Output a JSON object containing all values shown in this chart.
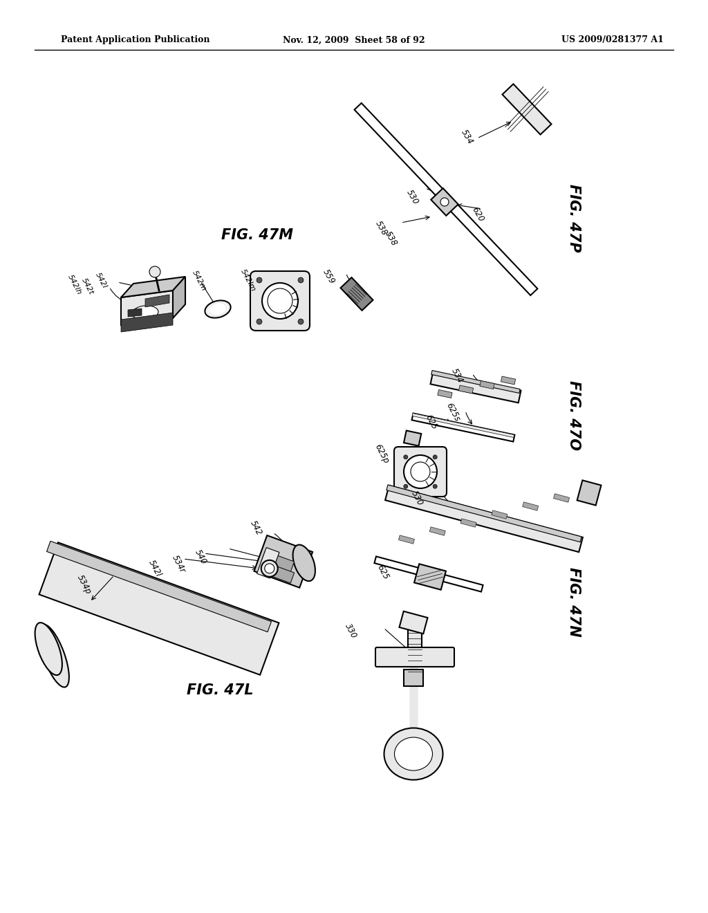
{
  "background_color": "#ffffff",
  "header_left": "Patent Application Publication",
  "header_center": "Nov. 12, 2009  Sheet 58 of 92",
  "header_right": "US 2009/0281377 A1",
  "fig_47M_label": "FIG. 47M",
  "fig_47L_label": "FIG. 47L",
  "fig_47P_label": "FIG. 47P",
  "fig_47O_label": "FIG. 47O",
  "fig_47N_label": "FIG. 47N"
}
